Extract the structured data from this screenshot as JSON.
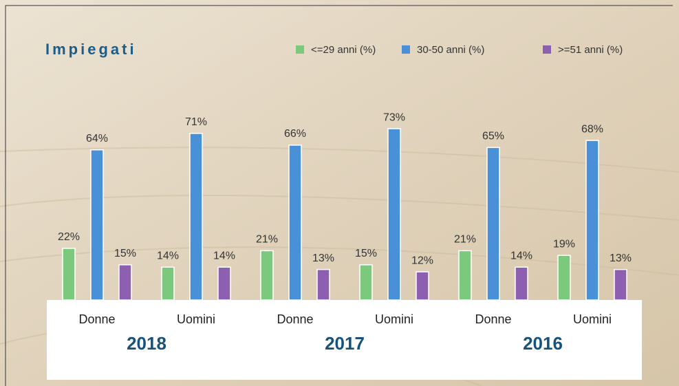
{
  "chart_data": {
    "type": "bar",
    "title": "Impiegati",
    "categories": [
      "Donne",
      "Uomini",
      "Donne",
      "Uomini",
      "Donne",
      "Uomini"
    ],
    "groups": [
      "2018",
      "2017",
      "2016"
    ],
    "series": [
      {
        "name": "<=29 anni (%)",
        "color": "#7cc97e",
        "values": [
          22,
          14,
          21,
          15,
          21,
          19
        ],
        "value_labels": [
          "22%",
          "14%",
          "21%",
          "15%",
          "21%",
          "19%"
        ]
      },
      {
        "name": "30-50 anni (%)",
        "color": "#4a90d6",
        "values": [
          64,
          71,
          66,
          73,
          65,
          68
        ],
        "value_labels": [
          "64%",
          "71%",
          "66%",
          "73%",
          "65%",
          "68%"
        ]
      },
      {
        "name": ">=51 anni (%)",
        "color": "#8d5fb1",
        "values": [
          15,
          14,
          13,
          12,
          14,
          13
        ],
        "value_labels": [
          "15%",
          "14%",
          "13%",
          "12%",
          "14%",
          "13%"
        ]
      }
    ],
    "ylim": [
      0,
      100
    ]
  }
}
